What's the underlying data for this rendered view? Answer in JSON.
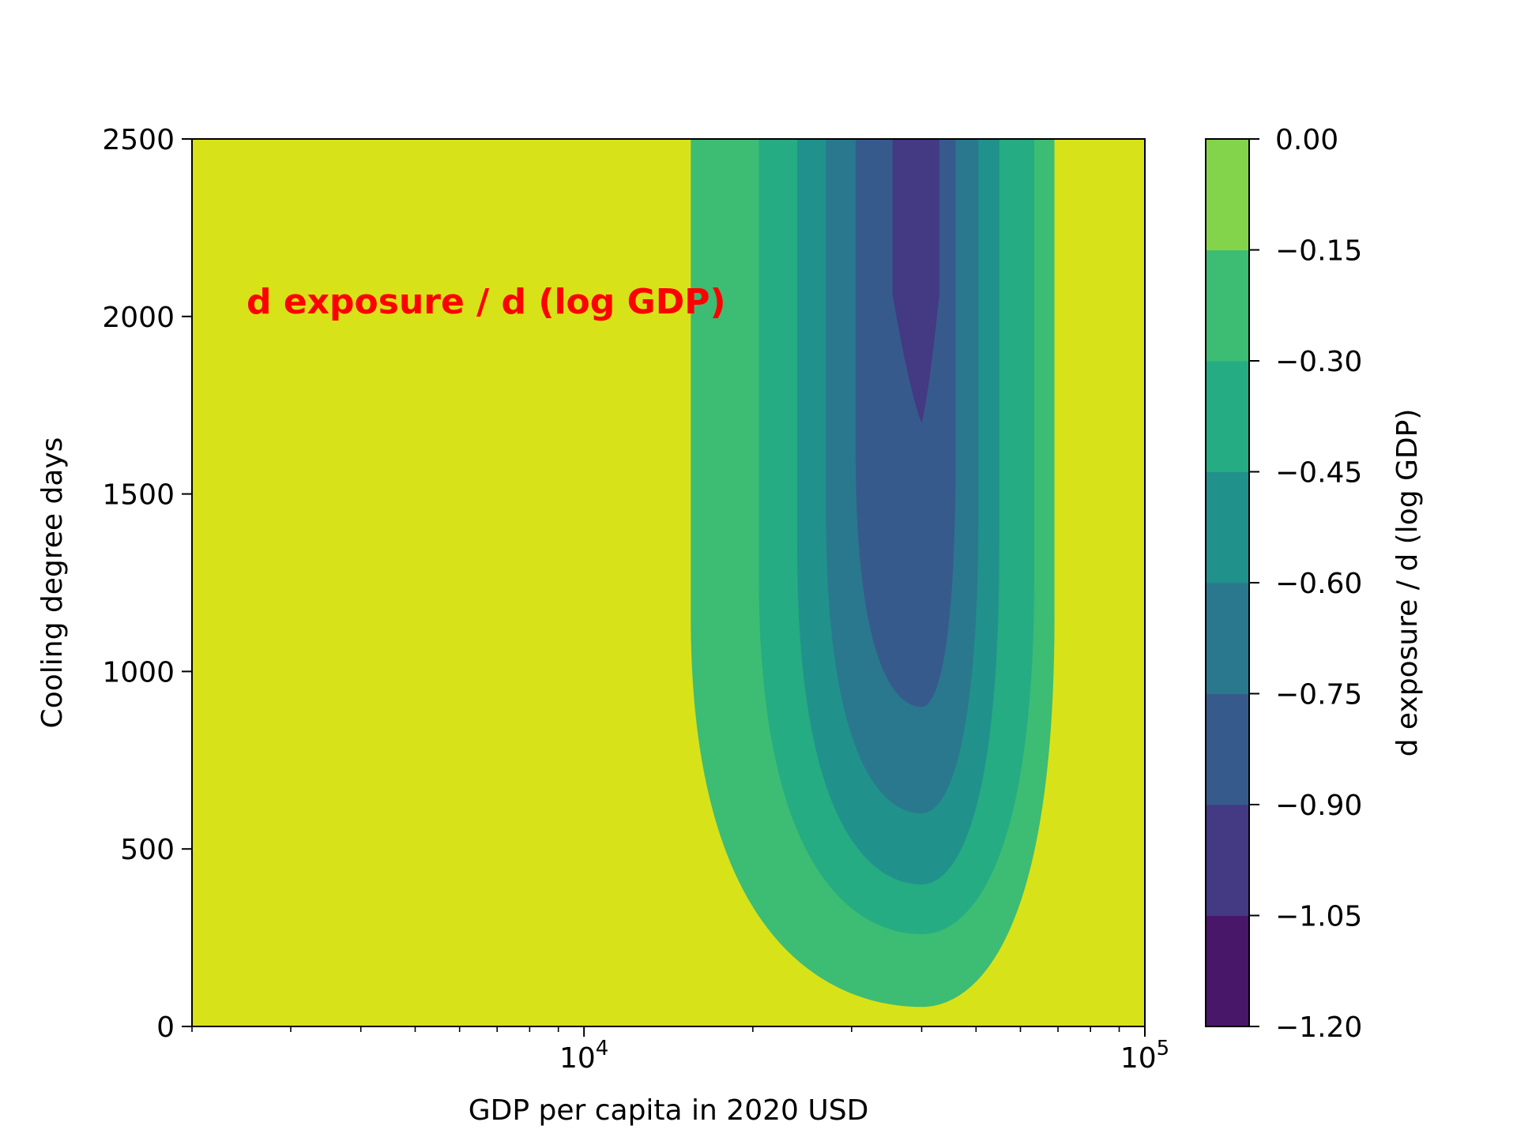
{
  "chart_data": {
    "type": "contourf",
    "annotation": "d exposure / d (log GDP)",
    "annotation_color": "#ff0000",
    "xlabel": "GDP per capita in 2020 USD",
    "ylabel": "Cooling degree days",
    "x_scale": "log",
    "xlim": [
      2000,
      100000
    ],
    "ylim": [
      0,
      2500
    ],
    "x_major_ticks": [
      {
        "value": 10000,
        "base": "10",
        "exp": "4"
      },
      {
        "value": 100000,
        "base": "10",
        "exp": "5"
      }
    ],
    "x_minor_ticks": [
      2000,
      3000,
      4000,
      5000,
      6000,
      7000,
      8000,
      9000,
      20000,
      30000,
      40000,
      50000,
      60000,
      70000,
      80000,
      90000
    ],
    "y_ticks": [
      "0",
      "500",
      "1000",
      "1500",
      "2000",
      "2500"
    ],
    "colorbar": {
      "label": "d exposure / d (log GDP)",
      "levels": [
        -1.2,
        -1.05,
        -0.9,
        -0.75,
        -0.6,
        -0.45,
        -0.3,
        -0.15,
        0.0
      ],
      "tick_labels": [
        "−1.20",
        "−1.05",
        "−0.90",
        "−0.75",
        "−0.60",
        "−0.45",
        "−0.30",
        "−0.15",
        "0.00"
      ],
      "colors": [
        "#481769",
        "#443983",
        "#375a8c",
        "#2a788e",
        "#21918c",
        "#25ac82",
        "#3dbc74",
        "#84d44b",
        "#d8e219"
      ]
    },
    "contour_bands": [
      {
        "level": -0.15,
        "x_left": 15500,
        "x_right": 69000,
        "y_min": 55,
        "x_center": 40000
      },
      {
        "level": -0.3,
        "x_left": 20500,
        "x_right": 63500,
        "y_min": 260,
        "x_center": 40000
      },
      {
        "level": -0.45,
        "x_left": 24000,
        "x_right": 55000,
        "y_min": 400,
        "x_center": 40000
      },
      {
        "level": -0.6,
        "x_left": 27000,
        "x_right": 50500,
        "y_min": 600,
        "x_center": 40000
      },
      {
        "level": -0.75,
        "x_left": 30500,
        "x_right": 46000,
        "y_min": 900,
        "x_center": 40000
      },
      {
        "level": -0.9,
        "x_left": 35500,
        "x_right": 43000,
        "y_min": 1700,
        "x_center": 40000
      }
    ]
  }
}
